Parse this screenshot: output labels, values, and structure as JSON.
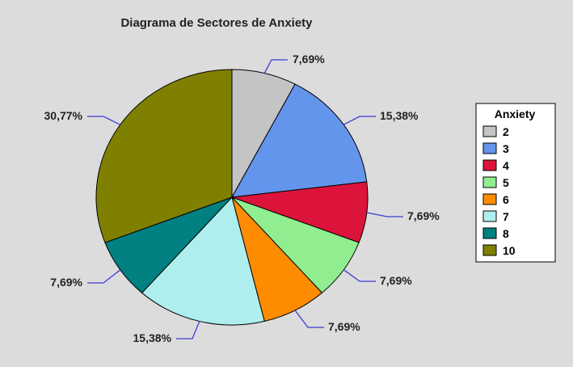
{
  "chart_data": {
    "type": "pie",
    "title": "Diagrama de Sectores de Anxiety",
    "legend_title": "Anxiety",
    "legend_position": "right",
    "slices": [
      {
        "label": "2",
        "value": 7.69,
        "display": "7,69%",
        "color": "#c4c4c4"
      },
      {
        "label": "3",
        "value": 15.38,
        "display": "15,38%",
        "color": "#6495ed"
      },
      {
        "label": "4",
        "value": 7.69,
        "display": "7,69%",
        "color": "#dc143c"
      },
      {
        "label": "5",
        "value": 7.69,
        "display": "7,69%",
        "color": "#90ee90"
      },
      {
        "label": "6",
        "value": 7.69,
        "display": "7,69%",
        "color": "#ff8c00"
      },
      {
        "label": "7",
        "value": 15.38,
        "display": "15,38%",
        "color": "#afeeee"
      },
      {
        "label": "8",
        "value": 7.69,
        "display": "7,69%",
        "color": "#008080"
      },
      {
        "label": "10",
        "value": 30.77,
        "display": "30,77%",
        "color": "#808000"
      }
    ],
    "leader_color": "#3b3bd6"
  }
}
